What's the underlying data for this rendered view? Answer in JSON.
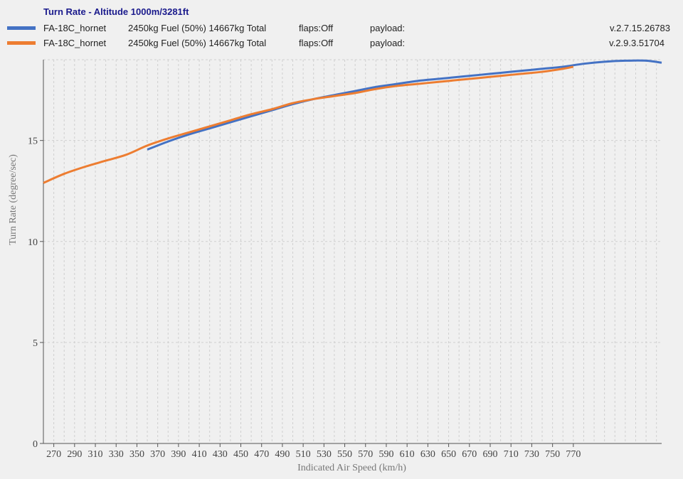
{
  "chart_data": {
    "type": "line",
    "title": "Turn Rate - Altitude 1000m/3281ft",
    "xlabel": "Indicated Air Speed (km/h)",
    "ylabel": "Turn Rate (degree/sec)",
    "xlim": [
      260,
      855
    ],
    "ylim": [
      0,
      19
    ],
    "x_ticks": [
      270,
      290,
      310,
      330,
      350,
      370,
      390,
      410,
      430,
      450,
      470,
      490,
      510,
      530,
      550,
      570,
      590,
      610,
      630,
      650,
      670,
      690,
      710,
      730,
      750,
      770
    ],
    "y_ticks": [
      0,
      5,
      10,
      15
    ],
    "grid": true,
    "legend_position": "top",
    "series": [
      {
        "name": "FA-18C_hornet",
        "fuel": "2450kg Fuel (50%) 14667kg Total",
        "flaps": "flaps:Off",
        "payload": "payload:",
        "version": "v.2.7.15.26783",
        "color": "#4472c4",
        "x": [
          360,
          380,
          400,
          420,
          440,
          460,
          480,
          500,
          520,
          540,
          560,
          580,
          600,
          620,
          640,
          660,
          680,
          700,
          720,
          740,
          760,
          780,
          800,
          820,
          840,
          855
        ],
        "y": [
          14.55,
          14.95,
          15.3,
          15.6,
          15.9,
          16.2,
          16.5,
          16.8,
          17.05,
          17.25,
          17.45,
          17.65,
          17.8,
          17.95,
          18.05,
          18.15,
          18.25,
          18.35,
          18.45,
          18.55,
          18.65,
          18.8,
          18.9,
          18.95,
          18.95,
          18.85
        ]
      },
      {
        "name": "FA-18C_hornet",
        "fuel": "2450kg Fuel (50%) 14667kg Total",
        "flaps": "flaps:Off",
        "payload": "payload:",
        "version": "v.2.9.3.51704",
        "color": "#ed7d31",
        "x": [
          260,
          280,
          300,
          320,
          340,
          360,
          380,
          400,
          420,
          440,
          460,
          480,
          500,
          520,
          540,
          560,
          580,
          600,
          620,
          640,
          660,
          680,
          700,
          720,
          740,
          760,
          770
        ],
        "y": [
          12.9,
          13.35,
          13.7,
          14.0,
          14.3,
          14.75,
          15.1,
          15.4,
          15.7,
          16.0,
          16.3,
          16.55,
          16.85,
          17.05,
          17.2,
          17.35,
          17.55,
          17.7,
          17.8,
          17.9,
          18.0,
          18.1,
          18.2,
          18.3,
          18.4,
          18.55,
          18.65
        ]
      }
    ]
  }
}
